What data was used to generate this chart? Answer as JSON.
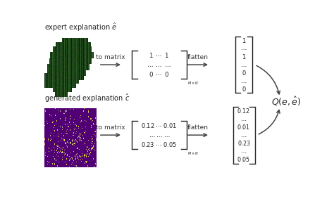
{
  "bg_color": "#ffffff",
  "text_color": "#222222",
  "top_label": "expert explanation $\\hat{e}$",
  "bottom_label": "generated explanation $\\hat{c}$",
  "to_matrix_text": "to matrix",
  "flatten_text": "flatten",
  "quality_label": "$Q(e, \\hat{e})$",
  "arrow_color": "#444444",
  "top_vector_entries": [
    "1",
    "\\cdots",
    "1",
    "\\cdots",
    "0",
    "\\cdots",
    "0"
  ],
  "bottom_vector_entries": [
    "0.12",
    "\\cdots",
    "0.01",
    "\\cdots",
    "0.23",
    "\\cdots",
    "0.05"
  ],
  "top_matrix_rows": [
    "$1 \\enspace \\cdots \\enspace 1$",
    "$\\cdots \\enspace \\cdots \\enspace \\cdots$",
    "$0 \\enspace \\cdots \\enspace 0$"
  ],
  "bottom_matrix_rows": [
    "$0.12 \\; \\cdots \\; 0.01$",
    "$\\cdots \\; \\cdots \\; \\cdots$",
    "$0.23 \\; \\cdots \\; 0.05$"
  ],
  "sub": "M \\times N"
}
